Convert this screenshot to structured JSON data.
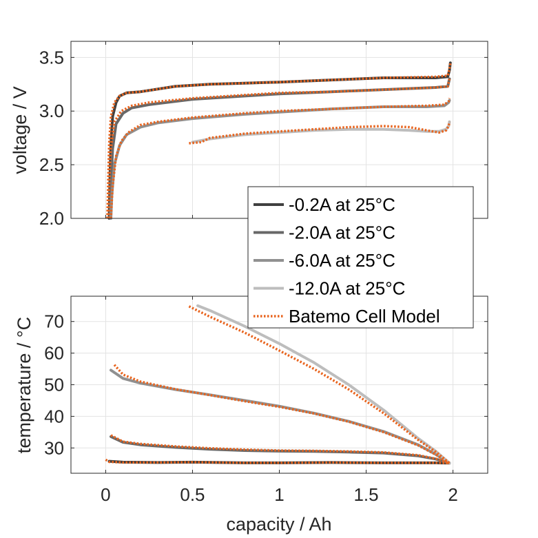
{
  "chart_data": [
    {
      "type": "line",
      "ylabel": "voltage / V",
      "xlabel": "",
      "xlim": [
        -0.2,
        2.2
      ],
      "ylim": [
        2.0,
        3.65
      ],
      "xticks": [
        0,
        0.5,
        1,
        1.5,
        2
      ],
      "yticks": [
        2.0,
        2.5,
        3.0,
        3.5
      ],
      "ytick_labels": [
        "2.0",
        "2.5",
        "3.0",
        "3.5"
      ],
      "xtick_labels_shown": false,
      "grid": true,
      "legend": {
        "placement": "bottom-right",
        "entries": [
          {
            "label": "-0.2A at 25°C",
            "color": "#404040",
            "style": "solid"
          },
          {
            "label": "-2.0A at 25°C",
            "color": "#686868",
            "style": "solid"
          },
          {
            "label": "-6.0A at 25°C",
            "color": "#909090",
            "style": "solid"
          },
          {
            "label": "-12.0A at 25°C",
            "color": "#bdbdbd",
            "style": "solid"
          },
          {
            "label": "Batemo Cell Model",
            "color": "#e8641e",
            "style": "dotted"
          }
        ]
      },
      "series": [
        {
          "label": "-0.2A at 25°C",
          "color": "#404040",
          "style": "solid",
          "x": [
            0.02,
            0.025,
            0.03,
            0.04,
            0.06,
            0.08,
            0.12,
            0.2,
            0.4,
            0.6,
            0.8,
            1.0,
            1.3,
            1.6,
            1.9,
            1.97,
            1.98,
            1.985
          ],
          "y": [
            2.0,
            2.4,
            2.7,
            2.95,
            3.08,
            3.14,
            3.17,
            3.18,
            3.23,
            3.25,
            3.26,
            3.27,
            3.29,
            3.31,
            3.31,
            3.32,
            3.38,
            3.45
          ]
        },
        {
          "label": "-2.0A at 25°C",
          "color": "#686868",
          "style": "solid",
          "x": [
            0.025,
            0.03,
            0.04,
            0.06,
            0.1,
            0.15,
            0.25,
            0.5,
            0.8,
            1.0,
            1.3,
            1.6,
            1.9,
            1.97,
            1.98
          ],
          "y": [
            2.0,
            2.3,
            2.65,
            2.88,
            2.98,
            3.03,
            3.06,
            3.11,
            3.14,
            3.16,
            3.18,
            3.2,
            3.22,
            3.23,
            3.3
          ]
        },
        {
          "label": "-6.0A at 25°C",
          "color": "#909090",
          "style": "solid",
          "x": [
            0.03,
            0.035,
            0.05,
            0.08,
            0.12,
            0.2,
            0.3,
            0.5,
            0.8,
            1.0,
            1.3,
            1.6,
            1.85,
            1.95,
            1.975,
            1.98
          ],
          "y": [
            2.0,
            2.2,
            2.5,
            2.68,
            2.78,
            2.85,
            2.89,
            2.93,
            2.97,
            2.99,
            3.02,
            3.04,
            3.04,
            3.05,
            3.08,
            3.1
          ]
        },
        {
          "label": "-12.0A at 25°C",
          "color": "#bdbdbd",
          "style": "solid",
          "x": [
            0.5,
            0.6,
            0.8,
            1.0,
            1.2,
            1.4,
            1.6,
            1.75,
            1.85,
            1.92,
            1.96,
            1.975,
            1.98
          ],
          "y": [
            2.71,
            2.74,
            2.78,
            2.8,
            2.82,
            2.83,
            2.83,
            2.82,
            2.81,
            2.81,
            2.83,
            2.86,
            2.9
          ]
        },
        {
          "label": "Batemo Cell Model",
          "color": "#e8641e",
          "style": "dotted",
          "x": [
            0.01,
            0.015,
            0.02,
            0.03,
            0.05,
            0.08,
            0.12,
            0.2,
            0.4,
            0.6,
            0.8,
            1.0,
            1.3,
            1.6,
            1.9,
            1.97,
            1.98,
            1.985
          ],
          "y": [
            2.0,
            2.4,
            2.7,
            2.95,
            3.08,
            3.14,
            3.17,
            3.18,
            3.23,
            3.25,
            3.26,
            3.27,
            3.29,
            3.31,
            3.32,
            3.33,
            3.39,
            3.45
          ]
        },
        {
          "label": "Batemo Cell Model",
          "color": "#e8641e",
          "style": "dotted",
          "x": [
            0.015,
            0.02,
            0.03,
            0.05,
            0.09,
            0.15,
            0.25,
            0.5,
            0.8,
            1.0,
            1.3,
            1.6,
            1.9,
            1.97,
            1.98
          ],
          "y": [
            2.0,
            2.3,
            2.65,
            2.9,
            3.0,
            3.05,
            3.08,
            3.12,
            3.15,
            3.17,
            3.18,
            3.2,
            3.22,
            3.23,
            3.3
          ]
        },
        {
          "label": "Batemo Cell Model",
          "color": "#e8641e",
          "style": "dotted",
          "x": [
            0.03,
            0.04,
            0.06,
            0.09,
            0.13,
            0.2,
            0.3,
            0.5,
            0.8,
            1.0,
            1.3,
            1.6,
            1.85,
            1.95,
            1.975,
            1.98
          ],
          "y": [
            2.0,
            2.3,
            2.58,
            2.72,
            2.8,
            2.87,
            2.9,
            2.94,
            2.98,
            3.0,
            3.02,
            3.04,
            3.05,
            3.06,
            3.09,
            3.12
          ]
        },
        {
          "label": "Batemo Cell Model",
          "color": "#e8641e",
          "style": "dotted",
          "x": [
            0.48,
            0.55,
            0.6,
            0.8,
            1.0,
            1.2,
            1.4,
            1.6,
            1.75,
            1.85,
            1.92,
            1.96,
            1.975,
            1.98
          ],
          "y": [
            2.7,
            2.71,
            2.75,
            2.79,
            2.81,
            2.83,
            2.85,
            2.86,
            2.85,
            2.82,
            2.8,
            2.82,
            2.86,
            2.9
          ]
        }
      ]
    },
    {
      "type": "line",
      "xlabel": "capacity / Ah",
      "ylabel": "temperature / °C",
      "xlim": [
        -0.2,
        2.2
      ],
      "ylim": [
        22,
        78
      ],
      "xticks": [
        0,
        0.5,
        1,
        1.5,
        2
      ],
      "xtick_labels": [
        "0",
        "0.5",
        "1",
        "1.5",
        "2"
      ],
      "yticks": [
        30,
        40,
        50,
        60,
        70
      ],
      "ytick_labels": [
        "30",
        "40",
        "50",
        "60",
        "70"
      ],
      "grid": true,
      "series": [
        {
          "label": "-0.2A at 25°C",
          "color": "#404040",
          "style": "solid",
          "x": [
            0.02,
            0.1,
            0.3,
            0.5,
            0.8,
            1.0,
            1.3,
            1.6,
            1.9,
            1.98
          ],
          "y": [
            25.8,
            25.5,
            25.4,
            25.5,
            25.3,
            25.3,
            25.4,
            25.3,
            25.3,
            25.2
          ]
        },
        {
          "label": "-2.0A at 25°C",
          "color": "#686868",
          "style": "solid",
          "x": [
            0.03,
            0.1,
            0.2,
            0.4,
            0.6,
            0.8,
            1.0,
            1.2,
            1.4,
            1.6,
            1.8,
            1.9,
            1.98
          ],
          "y": [
            33.6,
            31.8,
            31.0,
            30.2,
            29.6,
            29.2,
            29.0,
            28.9,
            28.7,
            28.4,
            27.5,
            26.5,
            25.2
          ]
        },
        {
          "label": "-6.0A at 25°C",
          "color": "#909090",
          "style": "solid",
          "x": [
            0.03,
            0.1,
            0.2,
            0.4,
            0.6,
            0.8,
            1.0,
            1.2,
            1.4,
            1.6,
            1.8,
            1.9,
            1.98
          ],
          "y": [
            54.6,
            52.0,
            50.5,
            48.5,
            46.8,
            45.0,
            43.2,
            41.0,
            38.4,
            35.2,
            31.0,
            28.0,
            25.2
          ]
        },
        {
          "label": "-12.0A at 25°C",
          "color": "#bdbdbd",
          "style": "solid",
          "x": [
            0.53,
            0.6,
            0.8,
            1.0,
            1.2,
            1.4,
            1.6,
            1.8,
            1.9,
            1.98
          ],
          "y": [
            75.0,
            73.5,
            68.5,
            63.0,
            57.0,
            50.0,
            42.0,
            33.0,
            29.0,
            25.2
          ]
        },
        {
          "label": "Batemo Cell Model",
          "color": "#e8641e",
          "style": "dotted",
          "x": [
            0.0,
            0.02,
            0.1,
            0.3,
            0.5,
            0.8,
            1.0,
            1.3,
            1.6,
            1.9,
            1.98
          ],
          "y": [
            26.3,
            25.6,
            25.4,
            25.4,
            25.5,
            25.3,
            25.3,
            25.4,
            25.3,
            25.3,
            25.2
          ]
        },
        {
          "label": "Batemo Cell Model",
          "color": "#e8641e",
          "style": "dotted",
          "x": [
            0.03,
            0.1,
            0.2,
            0.4,
            0.6,
            0.8,
            1.0,
            1.2,
            1.4,
            1.6,
            1.8,
            1.9,
            1.98
          ],
          "y": [
            34.0,
            32.0,
            31.3,
            30.5,
            29.9,
            29.5,
            29.2,
            29.1,
            28.9,
            28.6,
            27.7,
            26.6,
            25.2
          ]
        },
        {
          "label": "Batemo Cell Model",
          "color": "#e8641e",
          "style": "dotted",
          "x": [
            0.05,
            0.1,
            0.2,
            0.4,
            0.6,
            0.8,
            1.0,
            1.2,
            1.4,
            1.6,
            1.8,
            1.9,
            1.98
          ],
          "y": [
            56.3,
            53.2,
            51.0,
            48.6,
            46.7,
            44.8,
            43.0,
            40.9,
            38.3,
            35.0,
            30.8,
            27.9,
            25.2
          ]
        },
        {
          "label": "Batemo Cell Model",
          "color": "#e8641e",
          "style": "dotted",
          "x": [
            0.48,
            0.6,
            0.8,
            1.0,
            1.2,
            1.4,
            1.6,
            1.8,
            1.9,
            1.98
          ],
          "y": [
            74.8,
            71.5,
            66.5,
            60.8,
            55.0,
            48.5,
            41.0,
            32.5,
            28.8,
            25.2
          ]
        }
      ]
    }
  ]
}
